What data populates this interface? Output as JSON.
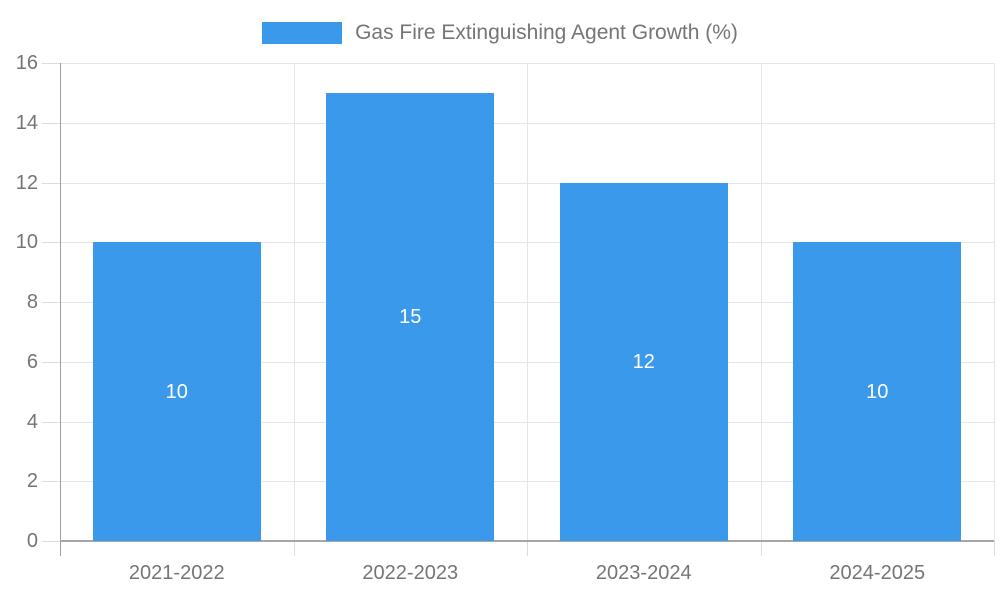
{
  "chart_data": {
    "type": "bar",
    "title": "Gas Fire Extinguishing Agent Growth (%)",
    "categories": [
      "2021-2022",
      "2022-2023",
      "2023-2024",
      "2024-2025"
    ],
    "values": [
      10,
      15,
      12,
      10
    ],
    "value_labels": [
      "10",
      "15",
      "12",
      "10"
    ],
    "yticks": [
      0,
      2,
      4,
      6,
      8,
      10,
      12,
      14,
      16
    ],
    "ylim": [
      0,
      16
    ],
    "xlabel": "",
    "ylabel": "",
    "grid": true,
    "legend_position": "top-center",
    "colors": {
      "bar": "#3b99ec",
      "value_label_text": "#ffffff",
      "axis_label_text": "#757575",
      "legend_text": "#757575",
      "gridline": "#e6e6e6",
      "axis_line": "#a6a6a6",
      "background": "#ffffff"
    }
  }
}
